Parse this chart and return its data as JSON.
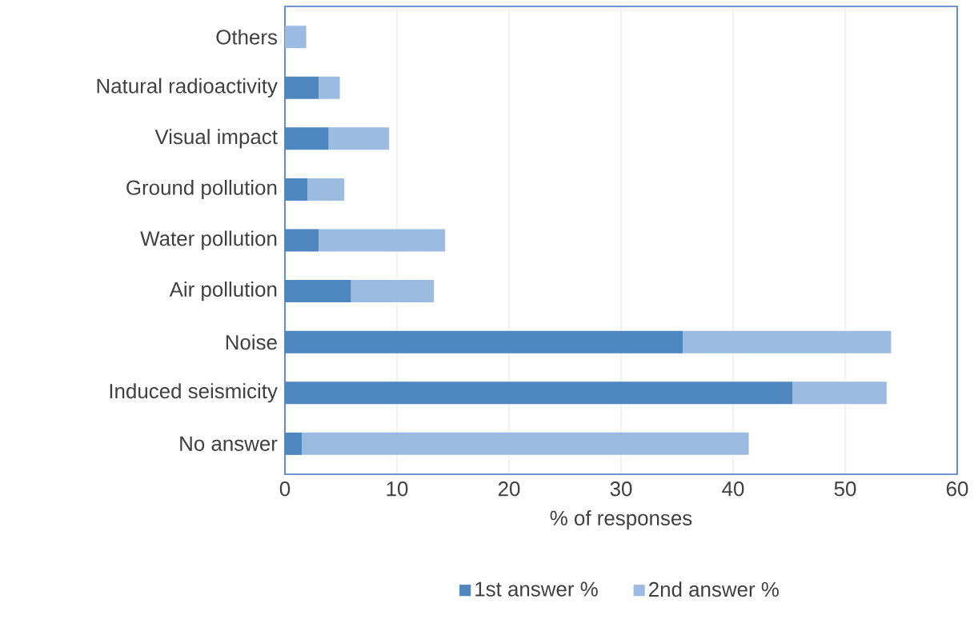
{
  "chart_data": {
    "type": "bar",
    "orientation": "horizontal",
    "stacked": true,
    "xlabel": "% of responses",
    "categories": [
      "Others",
      "Natural radioactivity",
      "Visual impact",
      "Ground pollution",
      "Water pollution",
      "Air pollution",
      "Noise",
      "Induced seismicity",
      "No answer"
    ],
    "series": [
      {
        "name": "1st answer %",
        "color": "#4e86bf",
        "values": [
          0,
          3.0,
          3.9,
          2.0,
          3.0,
          5.9,
          35.5,
          45.3,
          1.5
        ]
      },
      {
        "name": "2nd answer %",
        "color": "#9bbbe0",
        "values": [
          1.9,
          1.9,
          5.4,
          3.3,
          11.3,
          7.4,
          18.6,
          8.4,
          39.9
        ]
      }
    ],
    "xlim": [
      0,
      60
    ],
    "xticks": [
      0,
      10,
      20,
      30,
      40,
      50,
      60
    ],
    "grid": "x",
    "legend": "bottom"
  }
}
